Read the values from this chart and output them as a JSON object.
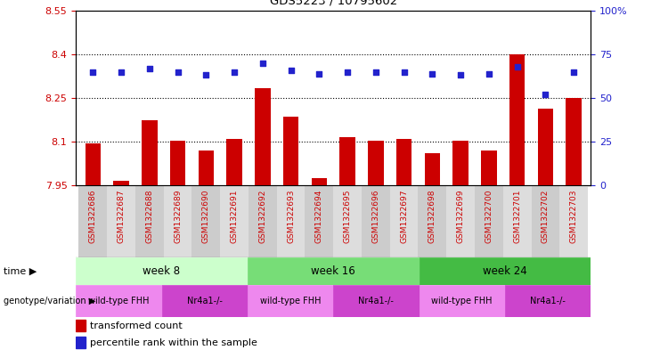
{
  "title": "GDS5223 / 10795602",
  "samples": [
    "GSM1322686",
    "GSM1322687",
    "GSM1322688",
    "GSM1322689",
    "GSM1322690",
    "GSM1322691",
    "GSM1322692",
    "GSM1322693",
    "GSM1322694",
    "GSM1322695",
    "GSM1322696",
    "GSM1322697",
    "GSM1322698",
    "GSM1322699",
    "GSM1322700",
    "GSM1322701",
    "GSM1322702",
    "GSM1322703"
  ],
  "red_values": [
    8.095,
    7.965,
    8.175,
    8.105,
    8.07,
    8.11,
    8.285,
    8.185,
    7.975,
    8.115,
    8.105,
    8.11,
    8.06,
    8.105,
    8.07,
    8.4,
    8.215,
    8.25
  ],
  "blue_values": [
    65,
    65,
    67,
    65,
    63,
    65,
    70,
    66,
    64,
    65,
    65,
    65,
    64,
    63,
    64,
    68,
    52,
    65
  ],
  "ylim_left": [
    7.95,
    8.55
  ],
  "ylim_right": [
    0,
    100
  ],
  "yticks_left": [
    7.95,
    8.1,
    8.25,
    8.4,
    8.55
  ],
  "yticks_right": [
    0,
    25,
    50,
    75,
    100
  ],
  "ytick_labels_left": [
    "7.95",
    "8.1",
    "8.25",
    "8.4",
    "8.55"
  ],
  "ytick_labels_right": [
    "0",
    "25",
    "50",
    "75",
    "100%"
  ],
  "bar_color": "#cc0000",
  "dot_color": "#2222cc",
  "time_groups": [
    {
      "label": "week 8",
      "start": 0,
      "end": 6,
      "color": "#ccffcc"
    },
    {
      "label": "week 16",
      "start": 6,
      "end": 12,
      "color": "#77dd77"
    },
    {
      "label": "week 24",
      "start": 12,
      "end": 18,
      "color": "#44bb44"
    }
  ],
  "geno_groups": [
    {
      "label": "wild-type FHH",
      "start": 0,
      "end": 3,
      "color": "#ee88ee"
    },
    {
      "label": "Nr4a1-/-",
      "start": 3,
      "end": 6,
      "color": "#cc44cc"
    },
    {
      "label": "wild-type FHH",
      "start": 6,
      "end": 9,
      "color": "#ee88ee"
    },
    {
      "label": "Nr4a1-/-",
      "start": 9,
      "end": 12,
      "color": "#cc44cc"
    },
    {
      "label": "wild-type FHH",
      "start": 12,
      "end": 15,
      "color": "#ee88ee"
    },
    {
      "label": "Nr4a1-/-",
      "start": 15,
      "end": 18,
      "color": "#cc44cc"
    }
  ],
  "left_tick_color": "#cc0000",
  "right_tick_color": "#2222cc",
  "sample_label_color": "#cc0000",
  "label_col_even": "#cccccc",
  "label_col_odd": "#dddddd"
}
